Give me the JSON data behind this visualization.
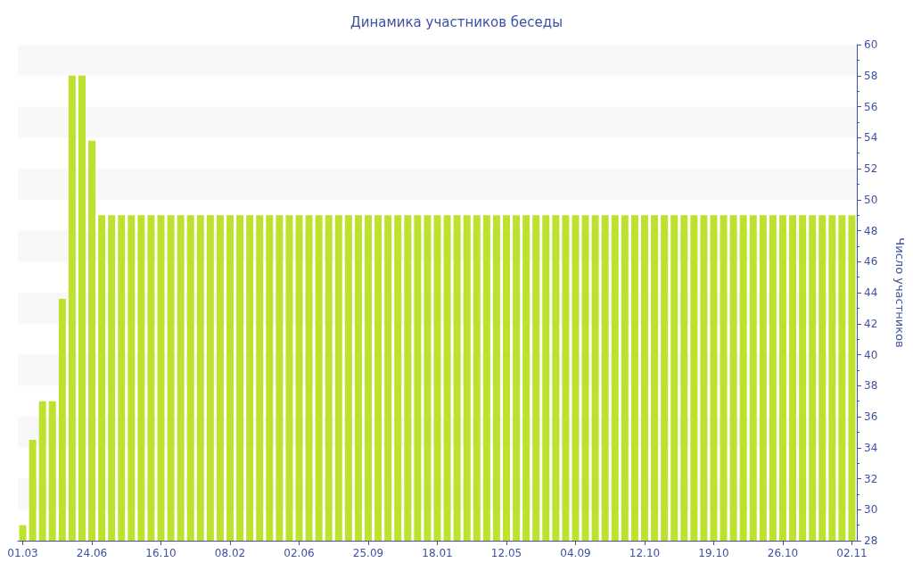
{
  "chart_data": {
    "type": "bar",
    "title": "Динамика участников беседы",
    "ylabel": "Число участников",
    "categories": [
      "01.03",
      null,
      null,
      null,
      null,
      null,
      null,
      "24.06",
      null,
      null,
      null,
      null,
      null,
      null,
      "16.10",
      null,
      null,
      null,
      null,
      null,
      null,
      "08.02",
      null,
      null,
      null,
      null,
      null,
      null,
      "02.06",
      null,
      null,
      null,
      null,
      null,
      null,
      "25.09",
      null,
      null,
      null,
      null,
      null,
      null,
      "18.01",
      null,
      null,
      null,
      null,
      null,
      null,
      "12.05",
      null,
      null,
      null,
      null,
      null,
      null,
      "04.09",
      null,
      null,
      null,
      null,
      null,
      null,
      "12.10",
      null,
      null,
      null,
      null,
      null,
      null,
      "19.10",
      null,
      null,
      null,
      null,
      null,
      null,
      "26.10",
      null,
      null,
      null,
      null,
      null,
      null,
      "02.11"
    ],
    "values": [
      29,
      34.5,
      37,
      37,
      43.6,
      58,
      58,
      53.8,
      49,
      49,
      49,
      49,
      49,
      49,
      49,
      49,
      49,
      49,
      49,
      49,
      49,
      49,
      49,
      49,
      49,
      49,
      49,
      49,
      49,
      49,
      49,
      49,
      49,
      49,
      49,
      49,
      49,
      49,
      49,
      49,
      49,
      49,
      49,
      49,
      49,
      49,
      49,
      49,
      49,
      49,
      49,
      49,
      49,
      49,
      49,
      49,
      49,
      49,
      49,
      49,
      49,
      49,
      49,
      49,
      49,
      49,
      49,
      49,
      49,
      49,
      49,
      49,
      49,
      49,
      49,
      49,
      49,
      49,
      49,
      49,
      49,
      49,
      49,
      49,
      49
    ],
    "color": "#bde22e",
    "ylim": [
      28,
      60
    ],
    "yticks": [
      28,
      30,
      32,
      34,
      36,
      38,
      40,
      42,
      44,
      46,
      48,
      50,
      52,
      54,
      56,
      58,
      60
    ]
  }
}
